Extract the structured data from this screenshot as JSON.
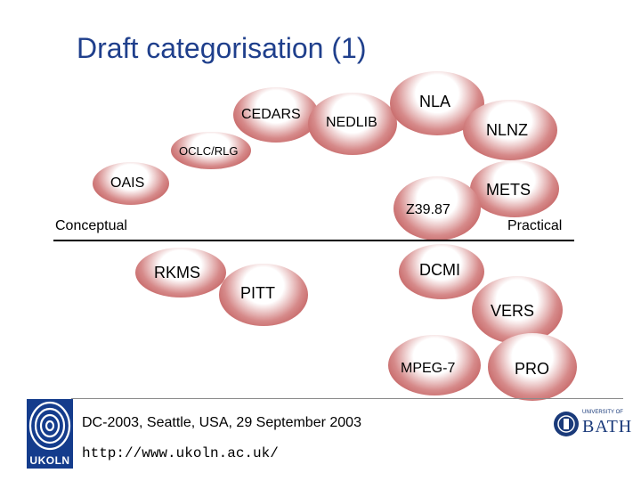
{
  "slide": {
    "title": "Draft categorisation (1)"
  },
  "axis": {
    "left_label": "Conceptual",
    "right_label": "Practical"
  },
  "items": [
    {
      "id": "cedars",
      "label": "CEDARS"
    },
    {
      "id": "nedlib",
      "label": "NEDLIB"
    },
    {
      "id": "nla",
      "label": "NLA"
    },
    {
      "id": "nlnz",
      "label": "NLNZ"
    },
    {
      "id": "oclc-rlg",
      "label": "OCLC/RLG"
    },
    {
      "id": "oais",
      "label": "OAIS"
    },
    {
      "id": "mets",
      "label": "METS"
    },
    {
      "id": "z3987",
      "label": "Z39.87"
    },
    {
      "id": "rkms",
      "label": "RKMS"
    },
    {
      "id": "dcmi",
      "label": "DCMI"
    },
    {
      "id": "pitt",
      "label": "PITT"
    },
    {
      "id": "vers",
      "label": "VERS"
    },
    {
      "id": "mpeg7",
      "label": "MPEG-7"
    },
    {
      "id": "pro",
      "label": "PRO"
    }
  ],
  "footer": {
    "event": "DC-2003, Seattle, USA, 29 September 2003",
    "url": "http://www.ukoln.ac.uk/",
    "left_logo_text": "UKOLN",
    "right_logo_text": "BATH",
    "right_logo_small": "UNIVERSITY OF"
  },
  "colors": {
    "title": "#1f3f8c",
    "blob_edge": "#b23a3a",
    "logo_blue": "#143c8c"
  }
}
